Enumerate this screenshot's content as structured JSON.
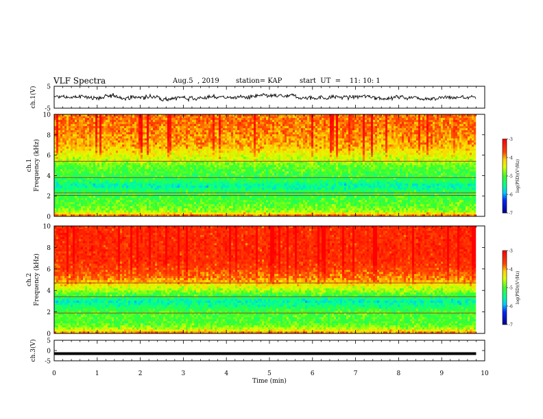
{
  "header": {
    "title": "VLF Spectra",
    "date": "Aug.5  , 2019",
    "station": "station= KAP",
    "start": "start  UT  =    11: 10: 1"
  },
  "chart_data": [
    {
      "type": "line",
      "panel": "ch1-waveform",
      "ylabel": "ch.1(V)",
      "xlim": [
        0,
        10
      ],
      "ylim": [
        -5,
        5
      ],
      "yticks": [
        "5",
        "-5"
      ],
      "x_data_end": 9.8,
      "mean_level": 0,
      "fluctuation_amplitude_v": 1.5
    },
    {
      "type": "heatmap",
      "panel": "ch1-spectrogram",
      "ylabel": "ch.1\nFrequency (kHz)",
      "xlim": [
        0,
        10
      ],
      "ylim": [
        0,
        10
      ],
      "yticks": [
        "0",
        "2",
        "4",
        "6",
        "8",
        "10"
      ],
      "x_data_end": 9.8,
      "freq_profile_khz": [
        0,
        0.5,
        1,
        1.5,
        2,
        2.5,
        3,
        3.5,
        4,
        4.5,
        5,
        5.5,
        6,
        7,
        8,
        9,
        10
      ],
      "log_psd_profile": [
        -3.6,
        -4.7,
        -4.9,
        -5.0,
        -5.1,
        -5.2,
        -5.6,
        -5.2,
        -5.1,
        -5.0,
        -4.9,
        -4.6,
        -4.4,
        -4.0,
        -3.9,
        -3.8,
        -3.8
      ],
      "horizontal_lines_khz": [
        2.05,
        2.3,
        3.8,
        5.4
      ],
      "colorbar": {
        "label": "log(PSD)(V²/Hz)",
        "range": [
          -7,
          -3
        ],
        "ticks": [
          "-3",
          "-4",
          "-5",
          "-6",
          "-7"
        ]
      }
    },
    {
      "type": "heatmap",
      "panel": "ch2-spectrogram",
      "ylabel": "ch.2\nFrequency (kHz)",
      "xlim": [
        0,
        10
      ],
      "ylim": [
        0,
        10
      ],
      "yticks": [
        "0",
        "2",
        "4",
        "6",
        "8",
        "10"
      ],
      "x_data_end": 9.8,
      "freq_profile_khz": [
        0,
        0.5,
        1,
        1.5,
        2,
        2.5,
        3,
        3.5,
        4,
        4.5,
        5,
        6,
        7,
        8,
        9,
        10
      ],
      "log_psd_profile": [
        -3.7,
        -4.7,
        -5.0,
        -5.0,
        -5.0,
        -5.3,
        -5.6,
        -5.1,
        -4.7,
        -4.3,
        -3.9,
        -3.6,
        -3.4,
        -3.4,
        -3.4,
        -3.4
      ],
      "horizontal_lines_khz": [
        1.9,
        3.4,
        4.7
      ],
      "colorbar": {
        "label": "log(PSD)(V²/Hz)",
        "range": [
          -7,
          -3
        ],
        "ticks": [
          "-3",
          "-4",
          "-5",
          "-6",
          "-7"
        ]
      }
    },
    {
      "type": "line",
      "panel": "ch3-waveform",
      "ylabel": "ch.3(V)",
      "xlabel": "Time  (min)",
      "xlim": [
        0,
        10
      ],
      "ylim": [
        -5,
        5
      ],
      "yticks": [
        "5",
        "0",
        "-5"
      ],
      "xticks": [
        "0",
        "1",
        "2",
        "3",
        "4",
        "5",
        "6",
        "7",
        "8",
        "9",
        "10"
      ],
      "x_data_end": 9.8,
      "constant_level_v": -1.5
    }
  ]
}
